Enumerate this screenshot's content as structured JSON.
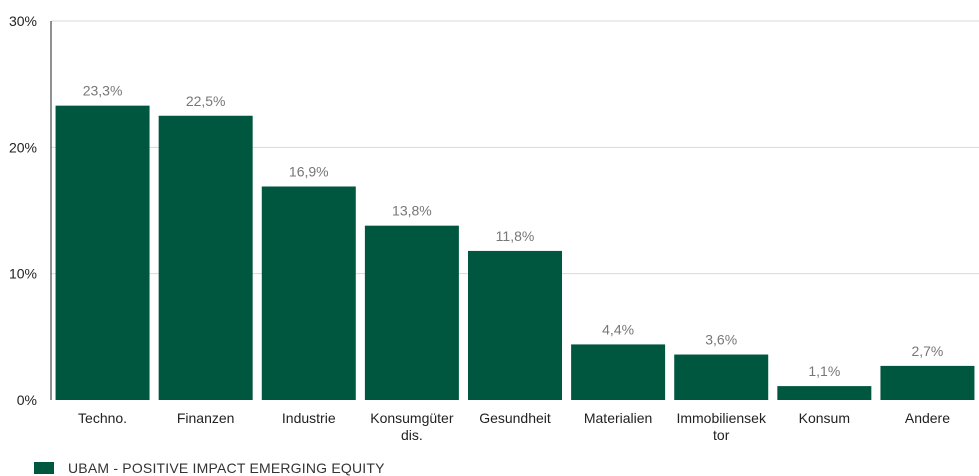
{
  "chart_data": {
    "type": "bar",
    "categories": [
      "Techno.",
      "Finanzen",
      "Industrie",
      "Konsumgüter dis.",
      "Gesundheit",
      "Materialien",
      "Immobiliensek tor",
      "Konsum",
      "Andere"
    ],
    "category_lines": [
      [
        "Techno."
      ],
      [
        "Finanzen"
      ],
      [
        "Industrie"
      ],
      [
        "Konsumgüter",
        "dis."
      ],
      [
        "Gesundheit"
      ],
      [
        "Materialien"
      ],
      [
        "Immobiliensek",
        "tor"
      ],
      [
        "Konsum"
      ],
      [
        "Andere"
      ]
    ],
    "series": [
      {
        "name": "UBAM - POSITIVE IMPACT EMERGING EQUITY",
        "values": [
          23.3,
          22.5,
          16.9,
          13.8,
          11.8,
          4.4,
          3.6,
          1.1,
          2.7
        ],
        "labels": [
          "23,3%",
          "22,5%",
          "16,9%",
          "13,8%",
          "11,8%",
          "4,4%",
          "3,6%",
          "1,1%",
          "2,7%"
        ],
        "color": "#00573f"
      }
    ],
    "ylim": [
      0,
      30
    ],
    "yticks": [
      0,
      10,
      20,
      30
    ],
    "ytick_labels": [
      "0%",
      "10%",
      "20%",
      "30%"
    ],
    "grid": true,
    "legend_position": "bottom-left"
  },
  "colors": {
    "bar": "#00573f",
    "grid": "#d9d9d9",
    "axis": "#222222"
  }
}
